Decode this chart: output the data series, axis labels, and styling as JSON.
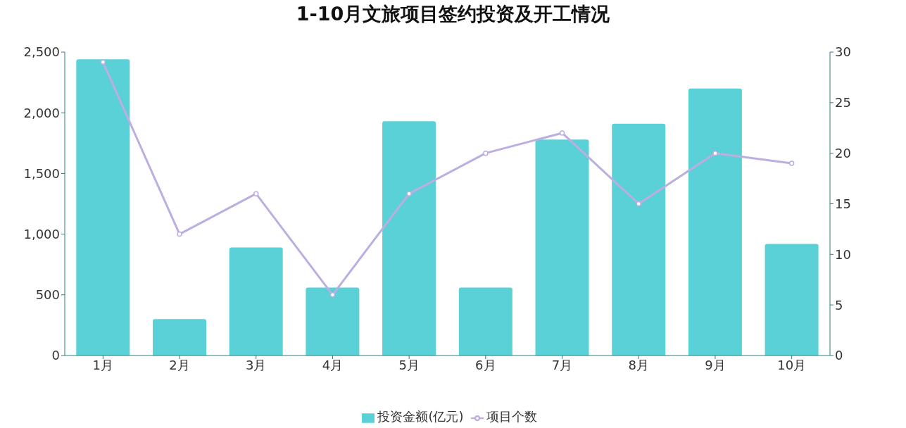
{
  "chart_data": {
    "type": "bar",
    "title": "1-10月文旅项目签约投资及开工情况",
    "categories": [
      "1月",
      "2月",
      "3月",
      "4月",
      "5月",
      "6月",
      "7月",
      "8月",
      "9月",
      "10月"
    ],
    "series": [
      {
        "name": "投资金额(亿元)",
        "color": "#5ad1d6",
        "values": [
          2440,
          300,
          890,
          560,
          1930,
          560,
          1780,
          1910,
          2200,
          920
        ]
      },
      {
        "name": "项目个数",
        "type": "line",
        "axis": "y2",
        "color": "#bcaee0",
        "marker": "circle",
        "values": [
          29,
          12,
          16,
          6,
          16,
          20,
          22,
          15,
          20,
          19
        ]
      }
    ],
    "ylim": [
      0,
      2500
    ],
    "yticks": [
      0,
      500,
      {
        "value": 1000,
        "label": "1,000"
      },
      {
        "value": 1500,
        "label": "1,500"
      },
      {
        "value": 2000,
        "label": "2,000"
      },
      {
        "value": 2500,
        "label": "2,500"
      }
    ],
    "y2lim": [
      0,
      30
    ],
    "y2ticks": [
      0,
      5,
      10,
      15,
      20,
      25,
      30
    ],
    "legend": "bottom"
  }
}
